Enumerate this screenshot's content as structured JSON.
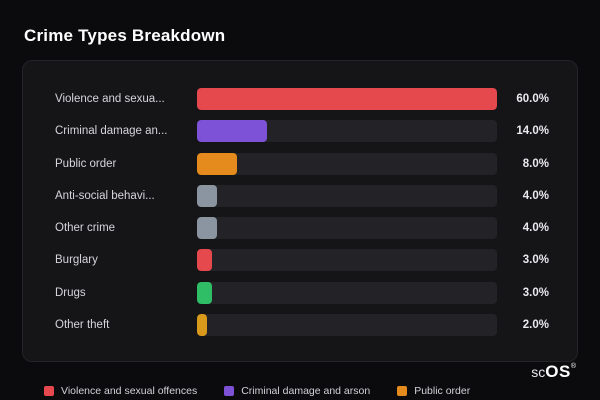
{
  "page": {
    "title": "Crime Types Breakdown"
  },
  "chart_data": {
    "type": "bar",
    "orientation": "horizontal",
    "title": "Crime Types Breakdown",
    "max_value": 60,
    "categories": [
      "Violence and sexual offences",
      "Criminal damage and arson",
      "Public order",
      "Anti-social behaviour",
      "Other crime",
      "Burglary",
      "Drugs",
      "Other theft"
    ],
    "display_labels": [
      "Violence and sexua...",
      "Criminal damage an...",
      "Public order",
      "Anti-social behavi...",
      "Other crime",
      "Burglary",
      "Drugs",
      "Other theft"
    ],
    "values": [
      60.0,
      14.0,
      8.0,
      4.0,
      4.0,
      3.0,
      3.0,
      2.0
    ],
    "value_labels": [
      "60.0%",
      "14.0%",
      "8.0%",
      "4.0%",
      "4.0%",
      "3.0%",
      "3.0%",
      "2.0%"
    ],
    "colors": [
      "#e5484d",
      "#7e52d6",
      "#e58a1d",
      "#8b95a1",
      "#8b95a1",
      "#e5484d",
      "#2fbe65",
      "#d9991a"
    ],
    "track_color": "#232327",
    "legend_position": "bottom",
    "legend": [
      {
        "label": "Violence and sexual offences",
        "color": "#e5484d"
      },
      {
        "label": "Criminal damage and arson",
        "color": "#7e52d6"
      },
      {
        "label": "Public order",
        "color": "#e58a1d"
      }
    ]
  },
  "watermark": {
    "prefix": "sc",
    "brand": "OS",
    "reg": "®"
  }
}
